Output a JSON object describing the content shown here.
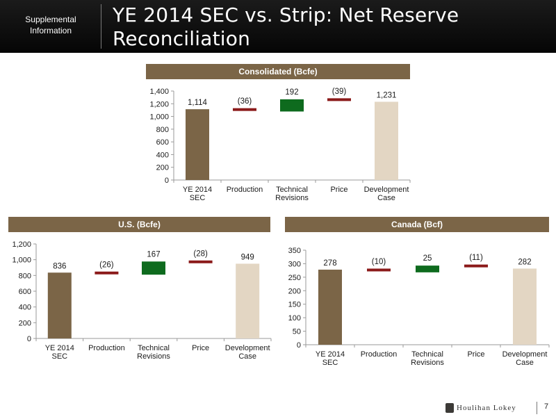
{
  "header": {
    "tag": "Supplemental Information",
    "title": "YE 2014 SEC vs. Strip: Net Reserve Reconciliation"
  },
  "page_number": "7",
  "logo_text": "Houlihan Lokey",
  "colors": {
    "start_bar": "#7b6547",
    "end_bar": "#e3d6c3",
    "negative": "#8b1a1a",
    "positive": "#0e6b1e",
    "banner": "#7b6547"
  },
  "chart_data": [
    {
      "id": "consolidated",
      "type": "bar",
      "subtype": "waterfall",
      "title": "Consolidated (Bcfe)",
      "categories": [
        "YE 2014 SEC",
        "Production",
        "Technical Revisions",
        "Price",
        "Development Case"
      ],
      "values": [
        1114,
        -36,
        192,
        -39,
        1231
      ],
      "labels": [
        "1,114",
        "(36)",
        "192",
        "(39)",
        "1,231"
      ],
      "ylim": [
        0,
        1400
      ],
      "yticks": [
        0,
        200,
        400,
        600,
        800,
        1000,
        1200,
        1400
      ],
      "ytick_labels": [
        "0",
        "200",
        "400",
        "600",
        "800",
        "1,000",
        "1,200",
        "1,400"
      ],
      "grid": false,
      "legend": "none"
    },
    {
      "id": "us",
      "type": "bar",
      "subtype": "waterfall",
      "title": "U.S. (Bcfe)",
      "categories": [
        "YE 2014 SEC",
        "Production",
        "Technical Revisions",
        "Price",
        "Development Case"
      ],
      "values": [
        836,
        -26,
        167,
        -28,
        949
      ],
      "labels": [
        "836",
        "(26)",
        "167",
        "(28)",
        "949"
      ],
      "ylim": [
        0,
        1200
      ],
      "yticks": [
        0,
        200,
        400,
        600,
        800,
        1000,
        1200
      ],
      "ytick_labels": [
        "0",
        "200",
        "400",
        "600",
        "800",
        "1,000",
        "1,200"
      ],
      "grid": false,
      "legend": "none"
    },
    {
      "id": "canada",
      "type": "bar",
      "subtype": "waterfall",
      "title": "Canada (Bcf)",
      "categories": [
        "YE 2014 SEC",
        "Production",
        "Technical Revisions",
        "Price",
        "Development Case"
      ],
      "values": [
        278,
        -10,
        25,
        -11,
        282
      ],
      "labels": [
        "278",
        "(10)",
        "25",
        "(11)",
        "282"
      ],
      "ylim": [
        0,
        350
      ],
      "yticks": [
        0,
        50,
        100,
        150,
        200,
        250,
        300,
        350
      ],
      "ytick_labels": [
        "0",
        "50",
        "100",
        "150",
        "200",
        "250",
        "300",
        "350"
      ],
      "grid": false,
      "legend": "none"
    }
  ]
}
